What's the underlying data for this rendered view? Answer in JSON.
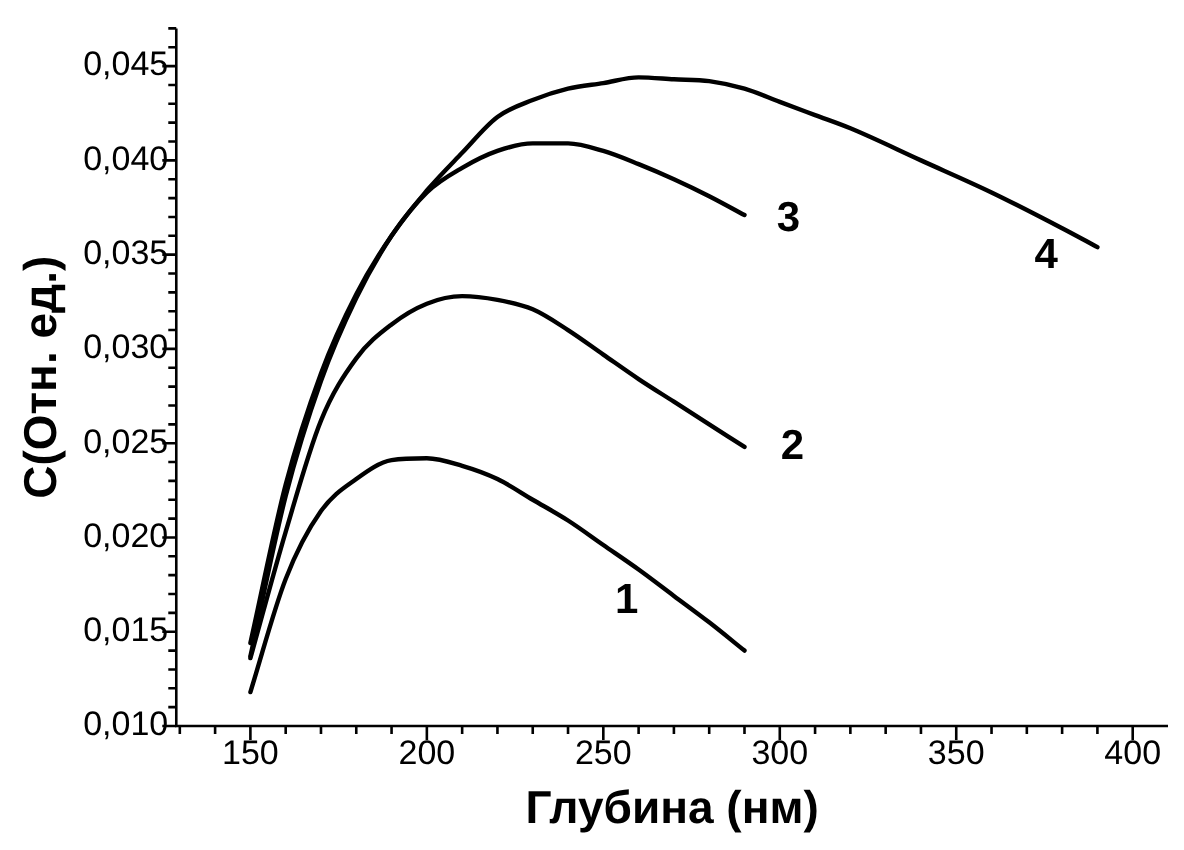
{
  "chart_data": {
    "type": "line",
    "xlabel": "Глубина (нм)",
    "ylabel": "C(Отн. ед.)",
    "xlim": [
      129,
      410
    ],
    "ylim": [
      0.01,
      0.047
    ],
    "xticks": [
      {
        "value": 130,
        "label": null
      },
      {
        "value": 140,
        "label": null
      },
      150,
      {
        "value": 160,
        "label": null
      },
      {
        "value": 170,
        "label": null
      },
      {
        "value": 180,
        "label": null
      },
      {
        "value": 190,
        "label": null
      },
      200,
      {
        "value": 210,
        "label": null
      },
      {
        "value": 220,
        "label": null
      },
      {
        "value": 230,
        "label": null
      },
      {
        "value": 240,
        "label": null
      },
      250,
      {
        "value": 260,
        "label": null
      },
      {
        "value": 270,
        "label": null
      },
      {
        "value": 280,
        "label": null
      },
      {
        "value": 290,
        "label": null
      },
      300,
      {
        "value": 310,
        "label": null
      },
      {
        "value": 320,
        "label": null
      },
      {
        "value": 330,
        "label": null
      },
      {
        "value": 340,
        "label": null
      },
      350,
      {
        "value": 360,
        "label": null
      },
      {
        "value": 370,
        "label": null
      },
      {
        "value": 380,
        "label": null
      },
      {
        "value": 390,
        "label": null
      },
      400
    ],
    "yticks": [
      {
        "value": 0.01,
        "label": "0,010"
      },
      {
        "value": 0.011,
        "label": null
      },
      {
        "value": 0.012,
        "label": null
      },
      {
        "value": 0.013,
        "label": null
      },
      {
        "value": 0.014,
        "label": null
      },
      {
        "value": 0.015,
        "label": "0,015"
      },
      {
        "value": 0.016,
        "label": null
      },
      {
        "value": 0.017,
        "label": null
      },
      {
        "value": 0.018,
        "label": null
      },
      {
        "value": 0.019,
        "label": null
      },
      {
        "value": 0.02,
        "label": "0,020"
      },
      {
        "value": 0.021,
        "label": null
      },
      {
        "value": 0.022,
        "label": null
      },
      {
        "value": 0.023,
        "label": null
      },
      {
        "value": 0.024,
        "label": null
      },
      {
        "value": 0.025,
        "label": "0,025"
      },
      {
        "value": 0.026,
        "label": null
      },
      {
        "value": 0.027,
        "label": null
      },
      {
        "value": 0.028,
        "label": null
      },
      {
        "value": 0.029,
        "label": null
      },
      {
        "value": 0.03,
        "label": "0,030"
      },
      {
        "value": 0.031,
        "label": null
      },
      {
        "value": 0.032,
        "label": null
      },
      {
        "value": 0.033,
        "label": null
      },
      {
        "value": 0.034,
        "label": null
      },
      {
        "value": 0.035,
        "label": "0,035"
      },
      {
        "value": 0.036,
        "label": null
      },
      {
        "value": 0.037,
        "label": null
      },
      {
        "value": 0.038,
        "label": null
      },
      {
        "value": 0.039,
        "label": null
      },
      {
        "value": 0.04,
        "label": "0,040"
      },
      {
        "value": 0.041,
        "label": null
      },
      {
        "value": 0.042,
        "label": null
      },
      {
        "value": 0.043,
        "label": null
      },
      {
        "value": 0.044,
        "label": null
      },
      {
        "value": 0.045,
        "label": "0,045"
      },
      {
        "value": 0.046,
        "label": null
      },
      {
        "value": 0.047,
        "label": null
      }
    ],
    "grid": false,
    "legend": false,
    "marker": "none",
    "line_style": "solid",
    "series": [
      {
        "name": "1",
        "color": "#000000",
        "x": [
          150,
          160,
          170,
          180,
          190,
          200,
          210,
          220,
          230,
          240,
          250,
          260,
          270,
          280,
          290
        ],
        "values": [
          0.0118,
          0.0178,
          0.0214,
          0.0231,
          0.0241,
          0.0242,
          0.0238,
          0.0231,
          0.022,
          0.0209,
          0.0196,
          0.0183,
          0.0169,
          0.0155,
          0.014
        ]
      },
      {
        "name": "2",
        "color": "#000000",
        "x": [
          150,
          160,
          170,
          180,
          190,
          200,
          210,
          220,
          230,
          240,
          250,
          260,
          270,
          280,
          290
        ],
        "values": [
          0.0136,
          0.0203,
          0.0262,
          0.0295,
          0.0313,
          0.0324,
          0.0328,
          0.0326,
          0.0321,
          0.031,
          0.0297,
          0.0284,
          0.0272,
          0.026,
          0.0248
        ]
      },
      {
        "name": "3",
        "color": "#000000",
        "x": [
          150,
          160,
          170,
          180,
          190,
          200,
          210,
          220,
          230,
          240,
          250,
          260,
          270,
          280,
          290
        ],
        "values": [
          0.0144,
          0.0228,
          0.0287,
          0.0329,
          0.036,
          0.0383,
          0.0396,
          0.0405,
          0.0409,
          0.0409,
          0.0405,
          0.0398,
          0.039,
          0.0381,
          0.0371
        ]
      },
      {
        "name": "4",
        "color": "#000000",
        "x": [
          150,
          160,
          170,
          180,
          190,
          200,
          210,
          220,
          230,
          240,
          250,
          260,
          270,
          280,
          290,
          300,
          310,
          320,
          340,
          360,
          380,
          390
        ],
        "values": [
          0.0137,
          0.0222,
          0.0283,
          0.0327,
          0.036,
          0.0384,
          0.0404,
          0.0423,
          0.0432,
          0.0438,
          0.0441,
          0.0444,
          0.0443,
          0.0442,
          0.0438,
          0.0431,
          0.0424,
          0.0417,
          0.04,
          0.0383,
          0.0364,
          0.0354
        ]
      }
    ]
  }
}
